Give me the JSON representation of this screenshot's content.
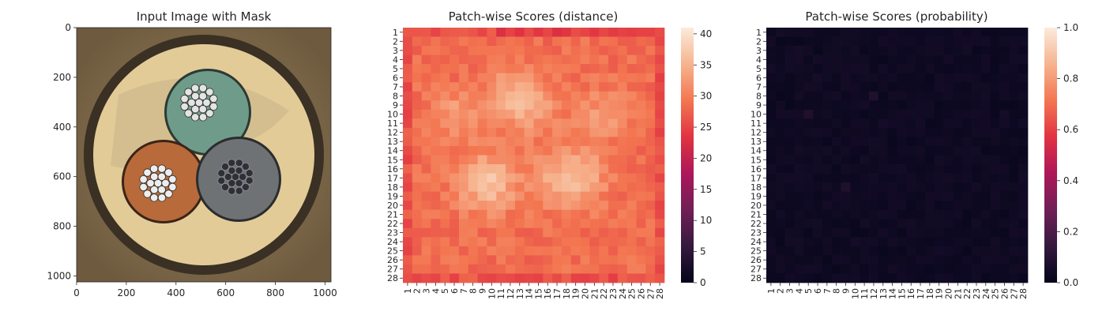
{
  "colors": {
    "axis": "#262626",
    "rocket_stops": [
      "#03051A",
      "#35193E",
      "#701F57",
      "#AD1759",
      "#E13342",
      "#F37651",
      "#F6B48F",
      "#FAEBDD"
    ],
    "tan_background": "#8C7352",
    "rim_outer": "#3A3024",
    "insulation": "#E8D3A0",
    "cable_green": "#6F9C8A",
    "cable_orange": "#B86A3A",
    "cable_gray": "#6E7274"
  },
  "chart_data": [
    {
      "type": "image",
      "title": "Input Image with Mask",
      "xlim": [
        0,
        1024
      ],
      "ylim": [
        1024,
        0
      ],
      "x_ticks": [
        "0",
        "200",
        "400",
        "600",
        "800",
        "1000"
      ],
      "x_tick_values": [
        0,
        200,
        400,
        600,
        800,
        1000
      ],
      "y_ticks": [
        "0",
        "200",
        "400",
        "600",
        "800",
        "1000"
      ],
      "y_tick_values": [
        0,
        200,
        400,
        600,
        800,
        1000
      ],
      "image_content": {
        "cable_cross_section": [
          {
            "name": "green-conductor",
            "cx": 560,
            "cy": 340,
            "r": 160,
            "color": "#6F9C8A"
          },
          {
            "name": "orange-conductor",
            "cx": 390,
            "cy": 620,
            "r": 160,
            "color": "#B86A3A"
          },
          {
            "name": "gray-conductor",
            "cx": 670,
            "cy": 610,
            "r": 160,
            "color": "#6E7274"
          }
        ]
      }
    },
    {
      "type": "heatmap",
      "title": "Patch-wise Scores (distance)",
      "rows": 28,
      "cols": 28,
      "x_ticks": [
        "1",
        "2",
        "3",
        "4",
        "5",
        "6",
        "7",
        "8",
        "9",
        "10",
        "11",
        "12",
        "13",
        "14",
        "15",
        "16",
        "17",
        "18",
        "19",
        "20",
        "21",
        "22",
        "23",
        "24",
        "25",
        "26",
        "27",
        "28"
      ],
      "y_ticks": [
        "1",
        "2",
        "3",
        "4",
        "5",
        "6",
        "7",
        "8",
        "9",
        "10",
        "11",
        "12",
        "13",
        "14",
        "15",
        "16",
        "17",
        "18",
        "19",
        "20",
        "21",
        "22",
        "23",
        "24",
        "25",
        "26",
        "27",
        "28"
      ],
      "value_range": [
        0,
        41
      ],
      "colorbar_ticks": [
        "0",
        "5",
        "10",
        "15",
        "20",
        "25",
        "30",
        "35",
        "40"
      ],
      "colorbar_tick_values": [
        0,
        5,
        10,
        15,
        20,
        25,
        30,
        35,
        40
      ],
      "values": []
    },
    {
      "type": "heatmap",
      "title": "Patch-wise Scores (probability)",
      "rows": 28,
      "cols": 28,
      "x_ticks": [
        "1",
        "2",
        "3",
        "4",
        "5",
        "6",
        "7",
        "8",
        "9",
        "10",
        "11",
        "12",
        "13",
        "14",
        "15",
        "16",
        "17",
        "18",
        "19",
        "20",
        "21",
        "22",
        "23",
        "24",
        "25",
        "26",
        "27",
        "28"
      ],
      "y_ticks": [
        "1",
        "2",
        "3",
        "4",
        "5",
        "6",
        "7",
        "8",
        "9",
        "10",
        "11",
        "12",
        "13",
        "14",
        "15",
        "16",
        "17",
        "18",
        "19",
        "20",
        "21",
        "22",
        "23",
        "24",
        "25",
        "26",
        "27",
        "28"
      ],
      "value_range": [
        0,
        1
      ],
      "colorbar_ticks": [
        "0.0",
        "0.2",
        "0.4",
        "0.6",
        "0.8",
        "1.0"
      ],
      "colorbar_tick_values": [
        0,
        0.2,
        0.4,
        0.6,
        0.8,
        1.0
      ],
      "values": []
    }
  ]
}
